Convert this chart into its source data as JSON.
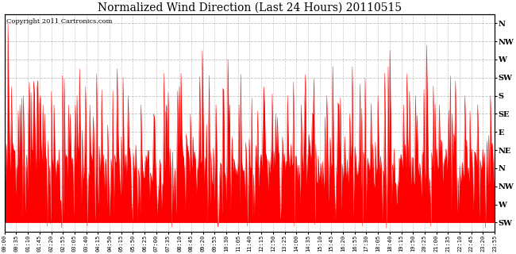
{
  "title": "Normalized Wind Direction (Last 24 Hours) 20110515",
  "copyright": "Copyright 2011 Cartronics.com",
  "line_color": "#ff0000",
  "fill_color": "#ff0000",
  "background_color": "#ffffff",
  "grid_color": "#b0b0b0",
  "y_labels_right": [
    "N",
    "NW",
    "W",
    "SW",
    "S",
    "SE",
    "E",
    "NE",
    "N",
    "NW",
    "W",
    "SW"
  ],
  "y_ticks_right": [
    11,
    10,
    9,
    8,
    7,
    6,
    5,
    4,
    3,
    2,
    1,
    0
  ],
  "ylim": [
    -0.5,
    11.5
  ],
  "x_tick_labels": [
    "00:00",
    "00:35",
    "01:10",
    "01:45",
    "02:20",
    "02:55",
    "03:05",
    "03:40",
    "04:15",
    "04:50",
    "05:15",
    "05:50",
    "06:25",
    "07:00",
    "07:35",
    "08:10",
    "08:45",
    "09:20",
    "09:55",
    "10:30",
    "11:05",
    "11:40",
    "12:15",
    "12:50",
    "13:25",
    "14:00",
    "14:35",
    "15:10",
    "15:45",
    "16:20",
    "16:55",
    "17:30",
    "18:05",
    "18:40",
    "19:15",
    "19:50",
    "20:25",
    "21:00",
    "21:35",
    "22:10",
    "22:45",
    "23:20",
    "23:55"
  ],
  "n_points": 576,
  "base_level": 3.2,
  "noise_std": 0.8,
  "spike_positions": [
    4,
    8,
    18,
    22,
    28,
    35,
    42,
    50,
    58,
    66,
    75,
    85,
    90,
    100,
    110,
    120,
    132,
    145,
    160,
    175,
    190,
    205,
    218,
    232,
    248,
    262,
    275,
    290,
    305,
    318,
    332,
    348,
    362,
    378,
    392,
    405,
    420,
    438,
    452,
    468,
    482,
    495,
    510,
    525,
    540,
    555,
    570
  ],
  "spike_heights": [
    11.0,
    7.5,
    6.5,
    7.0,
    6.0,
    6.5,
    7.0,
    7.5,
    6.5,
    6.0,
    6.5,
    7.0,
    8.5,
    6.5,
    7.0,
    9.0,
    8.5,
    7.0,
    6.5,
    6.0,
    6.5,
    7.5,
    6.0,
    9.5,
    6.5,
    9.0,
    6.5,
    7.0,
    6.5,
    6.0,
    7.0,
    6.5,
    6.0,
    7.0,
    6.5,
    6.0,
    6.5,
    7.0,
    9.5,
    6.5,
    7.0,
    9.8,
    6.5,
    6.0,
    7.0,
    6.5,
    7.0
  ],
  "dip_positions": [
    50,
    170,
    340,
    420,
    500
  ],
  "dip_values": [
    -0.2,
    -0.3,
    -0.2,
    -0.2,
    -0.2
  ]
}
